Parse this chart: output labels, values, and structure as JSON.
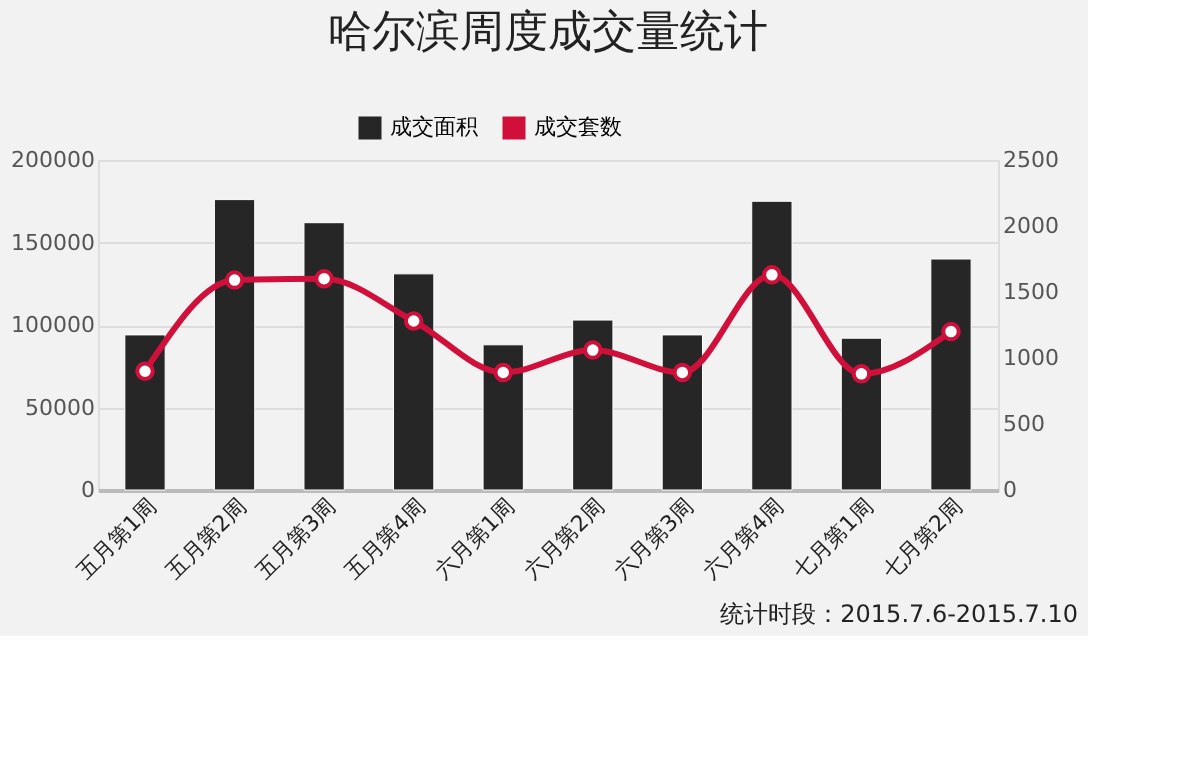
{
  "chart_data": {
    "type": "bar",
    "title": "哈尔滨周度成交量统计",
    "categories": [
      "五月第1周",
      "五月第2周",
      "五月第3周",
      "五月第4周",
      "六月第1周",
      "六月第2周",
      "六月第3周",
      "六月第4周",
      "七月第1周",
      "七月第2周"
    ],
    "series": [
      {
        "name": "成交面积",
        "color": "#262626",
        "values": [
          94000,
          176000,
          162000,
          131000,
          88000,
          103000,
          94000,
          175000,
          92000,
          140000
        ]
      },
      {
        "name": "成交套数",
        "type": "line",
        "axis": "y2",
        "color": "#d0103a",
        "marker": "circle",
        "values": [
          900,
          1590,
          1600,
          1280,
          890,
          1060,
          890,
          1630,
          880,
          1200
        ]
      }
    ],
    "ylim": [
      0,
      200000
    ],
    "yticks": [
      0,
      50000,
      100000,
      150000,
      200000
    ],
    "y2lim": [
      0,
      2500
    ],
    "y2ticks": [
      0,
      500,
      1000,
      1500,
      2000,
      2500
    ],
    "grid": "y",
    "legend": "top",
    "annotations": [
      "统计时段：2015.7.6-2015.7.10"
    ]
  }
}
